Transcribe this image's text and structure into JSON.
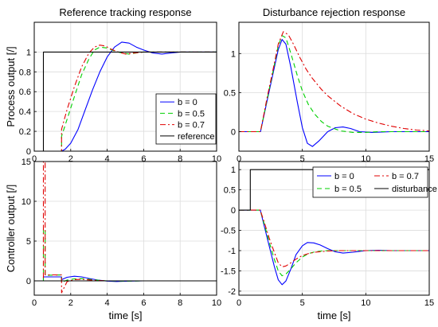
{
  "chart_data": [
    {
      "id": "tracking_output",
      "type": "line",
      "title": "Reference tracking response",
      "xlabel": "",
      "ylabel": "Process output [/]",
      "xlim": [
        0,
        10
      ],
      "ylim": [
        0,
        1.3
      ],
      "xticks": [
        0,
        2,
        4,
        6,
        8,
        10
      ],
      "yticks": [
        0,
        0.2,
        0.4,
        0.6,
        0.8,
        1
      ],
      "xtick_labels": [
        "0",
        "2",
        "4",
        "6",
        "8",
        "10"
      ],
      "ytick_labels": [
        "0",
        "0.2",
        "0.4",
        "0.6",
        "0.8",
        "1"
      ],
      "grid": true,
      "legend": "right",
      "series": [
        {
          "name": "b = 0",
          "color": "#0000ff",
          "dash": "solid",
          "x": [
            0,
            1.5,
            1.7,
            2.0,
            2.4,
            2.8,
            3.2,
            3.6,
            4.0,
            4.4,
            4.8,
            5.2,
            5.6,
            6.0,
            6.5,
            7.0,
            7.5,
            8.0,
            9.0,
            10.0
          ],
          "y": [
            0,
            0,
            0.02,
            0.08,
            0.22,
            0.42,
            0.62,
            0.8,
            0.95,
            1.05,
            1.1,
            1.09,
            1.05,
            1.02,
            0.99,
            0.98,
            0.99,
            1.0,
            1.0,
            1.0
          ]
        },
        {
          "name": "b = 0.5",
          "color": "#00d000",
          "dash": "6,4",
          "x": [
            0,
            1.5,
            1.5,
            1.8,
            2.2,
            2.6,
            3.0,
            3.3,
            3.6,
            4.0,
            4.4,
            4.8,
            5.2,
            5.6,
            6.0,
            7.0,
            8.0,
            10.0
          ],
          "y": [
            0,
            0,
            0.15,
            0.32,
            0.55,
            0.77,
            0.93,
            1.02,
            1.05,
            1.04,
            1.01,
            0.99,
            0.98,
            0.99,
            1.0,
            1.0,
            1.0,
            1.0
          ]
        },
        {
          "name": "b = 0.7",
          "color": "#e00000",
          "dash": "7,3,2,3",
          "x": [
            0,
            1.5,
            1.5,
            1.8,
            2.2,
            2.6,
            3.0,
            3.3,
            3.6,
            3.9,
            4.2,
            4.6,
            5.0,
            5.5,
            6.0,
            7.0,
            10.0
          ],
          "y": [
            0,
            0,
            0.22,
            0.42,
            0.65,
            0.85,
            0.99,
            1.05,
            1.07,
            1.06,
            1.03,
            1.0,
            0.98,
            0.99,
            1.0,
            1.0,
            1.0
          ]
        },
        {
          "name": "reference",
          "color": "#000000",
          "dash": "solid",
          "x": [
            0,
            0.5,
            0.5,
            10.0
          ],
          "y": [
            0,
            0,
            1,
            1
          ]
        }
      ]
    },
    {
      "id": "disturbance_output",
      "type": "line",
      "title": "Disturbance rejection response",
      "xlabel": "",
      "ylabel": "",
      "xlim": [
        0,
        15
      ],
      "ylim": [
        -0.25,
        1.4
      ],
      "xticks": [
        0,
        5,
        10,
        15
      ],
      "yticks": [
        0,
        0.5,
        1
      ],
      "xtick_labels": [
        "0",
        "5",
        "10",
        "15"
      ],
      "ytick_labels": [
        "0",
        "0.5",
        "1"
      ],
      "grid": true,
      "series": [
        {
          "name": "b = 0",
          "color": "#0000ff",
          "dash": "solid",
          "x": [
            0,
            1.7,
            2.2,
            2.7,
            3.1,
            3.4,
            3.7,
            4.1,
            4.6,
            5.0,
            5.4,
            5.8,
            6.3,
            7.0,
            7.6,
            8.2,
            8.8,
            9.5,
            10.5,
            12.0,
            15.0
          ],
          "y": [
            0,
            0,
            0.38,
            0.75,
            1.05,
            1.18,
            1.12,
            0.82,
            0.38,
            0.05,
            -0.15,
            -0.19,
            -0.12,
            0.0,
            0.05,
            0.06,
            0.04,
            0.0,
            -0.01,
            0.0,
            0.0
          ]
        },
        {
          "name": "b = 0.5",
          "color": "#00d000",
          "dash": "6,4",
          "x": [
            0,
            1.7,
            2.2,
            2.7,
            3.1,
            3.4,
            3.7,
            4.1,
            4.6,
            5.0,
            5.5,
            6.0,
            6.5,
            7.0,
            8.0,
            9.0,
            10.0,
            11.0,
            12.0,
            15.0
          ],
          "y": [
            0,
            0,
            0.4,
            0.78,
            1.1,
            1.23,
            1.2,
            1.0,
            0.72,
            0.52,
            0.34,
            0.22,
            0.13,
            0.07,
            0.01,
            -0.01,
            -0.01,
            0.0,
            0.0,
            0.0
          ]
        },
        {
          "name": "b = 0.7",
          "color": "#e00000",
          "dash": "7,3,2,3",
          "x": [
            0,
            1.7,
            2.2,
            2.7,
            3.1,
            3.5,
            3.9,
            4.3,
            4.8,
            5.3,
            5.8,
            6.5,
            7.0,
            8.0,
            9.0,
            10.0,
            11.0,
            12.0,
            13.0,
            14.0,
            15.0
          ],
          "y": [
            0,
            0,
            0.42,
            0.8,
            1.12,
            1.28,
            1.24,
            1.12,
            0.95,
            0.8,
            0.68,
            0.54,
            0.46,
            0.33,
            0.23,
            0.16,
            0.11,
            0.07,
            0.04,
            0.02,
            0.01
          ]
        }
      ]
    },
    {
      "id": "tracking_control",
      "type": "line",
      "title": "",
      "xlabel": "time [s]",
      "ylabel": "Controller output [/]",
      "xlim": [
        0,
        10
      ],
      "ylim": [
        -1.8,
        15
      ],
      "xticks": [
        0,
        2,
        4,
        6,
        8,
        10
      ],
      "yticks": [
        0,
        5,
        10,
        15
      ],
      "xtick_labels": [
        "0",
        "2",
        "4",
        "6",
        "8",
        "10"
      ],
      "ytick_labels": [
        "0",
        "5",
        "10",
        "15"
      ],
      "grid": true,
      "series": [
        {
          "name": "b = 0",
          "color": "#0000ff",
          "dash": "solid",
          "x": [
            0,
            0.5,
            0.5,
            1.5,
            1.5,
            1.8,
            2.2,
            2.6,
            3.0,
            3.5,
            4.0,
            4.5,
            5.0,
            6.0,
            7.0,
            10.0
          ],
          "y": [
            0,
            0,
            0.5,
            0.5,
            0.15,
            0.45,
            0.58,
            0.5,
            0.3,
            0.1,
            -0.03,
            -0.08,
            -0.05,
            0.0,
            0.0,
            0.0
          ]
        },
        {
          "name": "b = 0.5",
          "color": "#00d000",
          "dash": "6,4",
          "x": [
            0,
            0.5,
            0.5,
            0.6,
            0.6,
            1.5,
            1.5,
            1.8,
            2.2,
            2.6,
            3.0,
            3.5,
            4.0,
            5.0,
            6.0,
            10.0
          ],
          "y": [
            0,
            0,
            6.5,
            6.5,
            0.7,
            0.75,
            -0.2,
            0.1,
            0.25,
            0.28,
            0.2,
            0.08,
            0.0,
            -0.03,
            0.0,
            0.0
          ]
        },
        {
          "name": "b = 0.7",
          "color": "#e00000",
          "dash": "7,3,2,3",
          "x": [
            0,
            0.5,
            0.5,
            0.6,
            0.6,
            1.5,
            1.5,
            1.8,
            2.2,
            2.6,
            3.0,
            3.5,
            4.0,
            5.0,
            6.0,
            10.0
          ],
          "y": [
            0,
            0,
            15,
            15,
            0.75,
            0.75,
            -1.5,
            -0.1,
            0.15,
            0.2,
            0.12,
            0.05,
            0.0,
            0.0,
            0.0,
            0.0
          ]
        },
        {
          "name": "reference",
          "color": "#000000",
          "dash": "solid",
          "x": [
            0,
            10
          ],
          "y": [
            0,
            0
          ]
        }
      ]
    },
    {
      "id": "disturbance_control",
      "type": "line",
      "title": "",
      "xlabel": "time [s]",
      "ylabel": "",
      "xlim": [
        0,
        15
      ],
      "ylim": [
        -2.1,
        1.2
      ],
      "xticks": [
        0,
        5,
        10,
        15
      ],
      "yticks": [
        -2,
        -1.5,
        -1,
        -0.5,
        0,
        0.5,
        1
      ],
      "xtick_labels": [
        "0",
        "5",
        "10",
        "15"
      ],
      "ytick_labels": [
        "-2",
        "-1.5",
        "-1",
        "-0.5",
        "0",
        "0.5",
        "1"
      ],
      "grid": true,
      "legend": "top-right",
      "series": [
        {
          "name": "b = 0",
          "color": "#0000ff",
          "dash": "solid",
          "x": [
            0,
            1.7,
            1.7,
            2.0,
            2.4,
            2.8,
            3.1,
            3.4,
            3.7,
            4.1,
            4.5,
            5.0,
            5.4,
            5.9,
            6.4,
            7.0,
            7.6,
            8.2,
            9.0,
            10.0,
            11.0,
            12.0,
            15.0
          ],
          "y": [
            0,
            0,
            -0.02,
            -0.4,
            -0.9,
            -1.4,
            -1.72,
            -1.84,
            -1.75,
            -1.45,
            -1.1,
            -0.88,
            -0.8,
            -0.81,
            -0.86,
            -0.95,
            -1.03,
            -1.06,
            -1.04,
            -1.0,
            -0.99,
            -1.0,
            -1.0
          ]
        },
        {
          "name": "b = 0.5",
          "color": "#00d000",
          "dash": "6,4",
          "x": [
            0,
            1.7,
            1.7,
            2.0,
            2.4,
            2.8,
            3.1,
            3.4,
            3.7,
            4.1,
            4.5,
            5.0,
            5.5,
            6.0,
            6.5,
            7.0,
            8.0,
            9.0,
            10.0,
            12.0,
            15.0
          ],
          "y": [
            0,
            0,
            -0.02,
            -0.35,
            -0.8,
            -1.22,
            -1.5,
            -1.62,
            -1.58,
            -1.45,
            -1.3,
            -1.16,
            -1.07,
            -1.03,
            -1.01,
            -1.0,
            -1.0,
            -1.0,
            -1.0,
            -1.0,
            -1.0
          ]
        },
        {
          "name": "b = 0.7",
          "color": "#e00000",
          "dash": "7,3,2,3",
          "x": [
            0,
            1.7,
            1.7,
            2.0,
            2.4,
            2.8,
            3.1,
            3.4,
            3.7,
            4.1,
            4.5,
            5.0,
            5.5,
            6.0,
            7.0,
            8.0,
            9.0,
            10.0,
            12.0,
            15.0
          ],
          "y": [
            0,
            0,
            -0.02,
            -0.3,
            -0.7,
            -1.05,
            -1.3,
            -1.4,
            -1.38,
            -1.3,
            -1.21,
            -1.12,
            -1.07,
            -1.04,
            -1.01,
            -1.0,
            -1.0,
            -1.0,
            -1.0,
            -1.0
          ]
        },
        {
          "name": "disturbance",
          "color": "#000000",
          "dash": "solid",
          "x": [
            0,
            0.9,
            0.9,
            15.0
          ],
          "y": [
            0,
            0,
            1,
            1
          ]
        }
      ]
    }
  ]
}
